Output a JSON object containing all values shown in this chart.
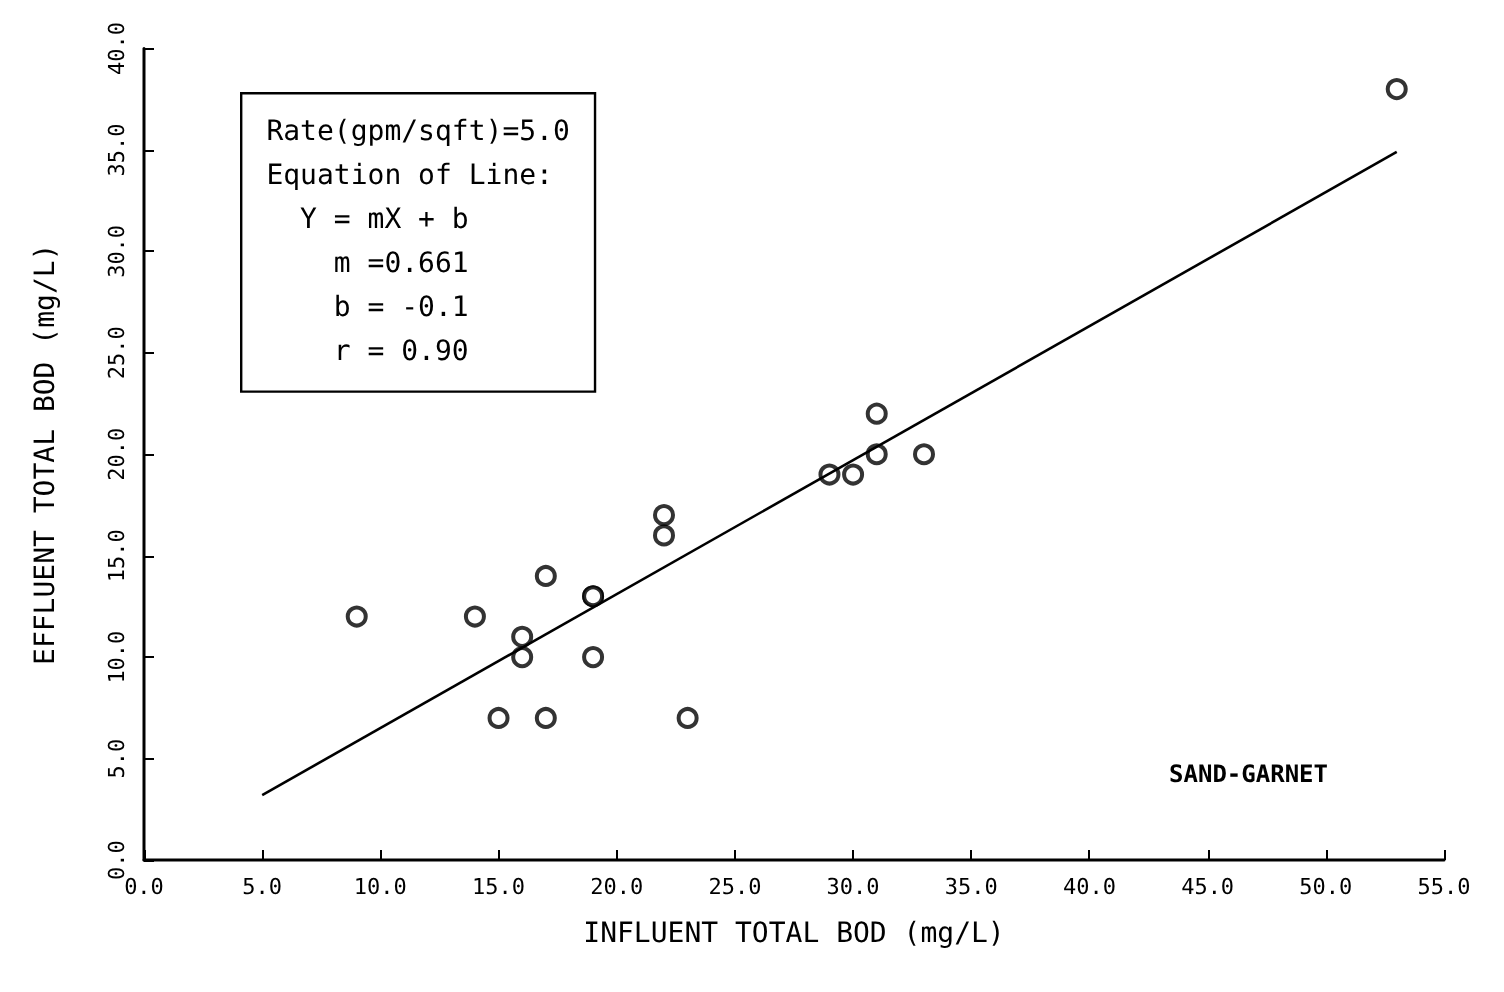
{
  "chart_data": {
    "type": "scatter",
    "xlabel": "INFLUENT TOTAL BOD (mg/L)",
    "ylabel": "EFFLUENT TOTAL BOD (mg/L)",
    "marker": "circle",
    "grid": false,
    "xlim": [
      0,
      55
    ],
    "ylim": [
      0,
      40
    ],
    "xticks": [
      {
        "value": 0,
        "label": "0.0"
      },
      {
        "value": 5,
        "label": "5.0"
      },
      {
        "value": 10,
        "label": "10.0"
      },
      {
        "value": 15,
        "label": "15.0"
      },
      {
        "value": 20,
        "label": "20.0"
      },
      {
        "value": 25,
        "label": "25.0"
      },
      {
        "value": 30,
        "label": "30.0"
      },
      {
        "value": 35,
        "label": "35.0"
      },
      {
        "value": 40,
        "label": "40.0"
      },
      {
        "value": 45,
        "label": "45.0"
      },
      {
        "value": 50,
        "label": "50.0"
      },
      {
        "value": 55,
        "label": "55.0"
      }
    ],
    "yticks": [
      {
        "value": 0,
        "label": "0.0"
      },
      {
        "value": 5,
        "label": "5.0"
      },
      {
        "value": 10,
        "label": "10.0"
      },
      {
        "value": 15,
        "label": "15.0"
      },
      {
        "value": 20,
        "label": "20.0"
      },
      {
        "value": 25,
        "label": "25.0"
      },
      {
        "value": 30,
        "label": "30.0"
      },
      {
        "value": 35,
        "label": "35.0"
      },
      {
        "value": 40,
        "label": "40.0"
      }
    ],
    "series": [
      {
        "color": "#000000",
        "x": [
          9,
          14,
          17,
          19,
          19,
          16,
          16,
          19,
          15,
          17,
          23,
          22,
          22,
          29,
          30,
          31,
          31,
          33,
          53
        ],
        "values": [
          12,
          12,
          14,
          13,
          13,
          11,
          10,
          10,
          7,
          7,
          7,
          17,
          16,
          19,
          19,
          20,
          22,
          20,
          38
        ]
      },
      {
        "type": "line",
        "color": "#000000",
        "marker": "none",
        "x": [
          5,
          53
        ],
        "values": [
          3.2,
          34.9
        ]
      }
    ],
    "annotations": [
      "Rate(gpm/sqft)=5.0\nEquation of Line:\n  Y = mX + b\n    m =0.661\n    b = -0.1\n    r = 0.90",
      "SAND-GARNET"
    ]
  }
}
